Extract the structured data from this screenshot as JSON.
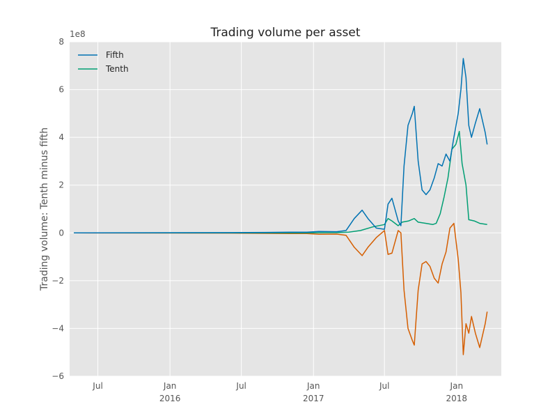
{
  "chart_data": {
    "type": "line",
    "title": "Trading volume per asset",
    "xlabel": "",
    "ylabel": "Trading volume: Tenth minus fifth",
    "y_offset_label": "1e8",
    "y_scale": 100000000,
    "ylim": [
      -6,
      8
    ],
    "yticks": [
      -6,
      -4,
      -2,
      0,
      2,
      4,
      6,
      8
    ],
    "xlim": [
      "2015-04-20",
      "2018-04-25"
    ],
    "xticks": [
      {
        "date": "2015-07-01",
        "label": "Jul",
        "year": ""
      },
      {
        "date": "2016-01-01",
        "label": "Jan",
        "year": "2016"
      },
      {
        "date": "2016-07-01",
        "label": "Jul",
        "year": ""
      },
      {
        "date": "2017-01-01",
        "label": "Jan",
        "year": "2017"
      },
      {
        "date": "2017-07-01",
        "label": "Jul",
        "year": ""
      },
      {
        "date": "2018-01-01",
        "label": "Jan",
        "year": "2018"
      }
    ],
    "grid": true,
    "legend_position": "top-left",
    "colors": {
      "background": "#e5e5e5",
      "grid": "#ffffff",
      "fifth": "#0072b2",
      "tenth": "#009e73",
      "difference": "#d55e00"
    },
    "series": [
      {
        "name": "Fifth",
        "key": "fifth",
        "points": [
          [
            "2015-05-01",
            0
          ],
          [
            "2016-06-01",
            0.01
          ],
          [
            "2016-09-01",
            0.02
          ],
          [
            "2016-11-01",
            0.03
          ],
          [
            "2016-12-15",
            0.03
          ],
          [
            "2017-01-15",
            0.06
          ],
          [
            "2017-03-01",
            0.05
          ],
          [
            "2017-03-25",
            0.1
          ],
          [
            "2017-04-15",
            0.6
          ],
          [
            "2017-05-05",
            0.95
          ],
          [
            "2017-05-20",
            0.6
          ],
          [
            "2017-06-10",
            0.2
          ],
          [
            "2017-07-01",
            0.15
          ],
          [
            "2017-07-10",
            1.2
          ],
          [
            "2017-07-20",
            1.45
          ],
          [
            "2017-08-05",
            0.5
          ],
          [
            "2017-08-12",
            0.3
          ],
          [
            "2017-08-20",
            2.8
          ],
          [
            "2017-08-30",
            4.5
          ],
          [
            "2017-09-10",
            5.0
          ],
          [
            "2017-09-15",
            5.3
          ],
          [
            "2017-09-25",
            3.0
          ],
          [
            "2017-10-05",
            1.8
          ],
          [
            "2017-10-15",
            1.6
          ],
          [
            "2017-10-25",
            1.8
          ],
          [
            "2017-11-05",
            2.3
          ],
          [
            "2017-11-15",
            2.9
          ],
          [
            "2017-11-25",
            2.8
          ],
          [
            "2017-12-05",
            3.3
          ],
          [
            "2017-12-15",
            3.0
          ],
          [
            "2017-12-25",
            4.0
          ],
          [
            "2018-01-05",
            5.0
          ],
          [
            "2018-01-12",
            6.0
          ],
          [
            "2018-01-18",
            7.3
          ],
          [
            "2018-01-25",
            6.5
          ],
          [
            "2018-02-01",
            4.5
          ],
          [
            "2018-02-08",
            4.0
          ],
          [
            "2018-02-18",
            4.6
          ],
          [
            "2018-03-01",
            5.2
          ],
          [
            "2018-03-15",
            4.2
          ],
          [
            "2018-03-20",
            3.7
          ]
        ]
      },
      {
        "name": "Tenth",
        "key": "tenth",
        "points": [
          [
            "2015-05-01",
            0
          ],
          [
            "2016-12-01",
            0.0
          ],
          [
            "2017-03-01",
            0.01
          ],
          [
            "2017-04-01",
            0.03
          ],
          [
            "2017-05-01",
            0.1
          ],
          [
            "2017-06-01",
            0.25
          ],
          [
            "2017-07-01",
            0.35
          ],
          [
            "2017-07-10",
            0.6
          ],
          [
            "2017-07-20",
            0.5
          ],
          [
            "2017-08-05",
            0.3
          ],
          [
            "2017-08-15",
            0.45
          ],
          [
            "2017-09-01",
            0.5
          ],
          [
            "2017-09-15",
            0.6
          ],
          [
            "2017-09-25",
            0.45
          ],
          [
            "2017-10-15",
            0.4
          ],
          [
            "2017-11-01",
            0.35
          ],
          [
            "2017-11-10",
            0.4
          ],
          [
            "2017-11-20",
            0.8
          ],
          [
            "2017-11-30",
            1.5
          ],
          [
            "2017-12-10",
            2.3
          ],
          [
            "2017-12-20",
            3.5
          ],
          [
            "2017-12-30",
            3.7
          ],
          [
            "2018-01-08",
            4.25
          ],
          [
            "2018-01-15",
            2.9
          ],
          [
            "2018-01-25",
            2.0
          ],
          [
            "2018-02-01",
            0.55
          ],
          [
            "2018-02-15",
            0.5
          ],
          [
            "2018-03-01",
            0.4
          ],
          [
            "2018-03-20",
            0.35
          ]
        ]
      },
      {
        "key": "difference",
        "points": [
          [
            "2015-05-01",
            0
          ],
          [
            "2016-06-01",
            -0.01
          ],
          [
            "2016-09-01",
            -0.02
          ],
          [
            "2016-11-01",
            -0.03
          ],
          [
            "2016-12-15",
            -0.03
          ],
          [
            "2017-01-15",
            -0.06
          ],
          [
            "2017-03-01",
            -0.05
          ],
          [
            "2017-03-25",
            -0.1
          ],
          [
            "2017-04-15",
            -0.6
          ],
          [
            "2017-05-05",
            -0.95
          ],
          [
            "2017-05-20",
            -0.6
          ],
          [
            "2017-06-10",
            -0.2
          ],
          [
            "2017-07-01",
            0.1
          ],
          [
            "2017-07-10",
            -0.9
          ],
          [
            "2017-07-20",
            -0.85
          ],
          [
            "2017-08-05",
            0.1
          ],
          [
            "2017-08-12",
            0.0
          ],
          [
            "2017-08-20",
            -2.4
          ],
          [
            "2017-08-30",
            -4.0
          ],
          [
            "2017-09-10",
            -4.5
          ],
          [
            "2017-09-15",
            -4.7
          ],
          [
            "2017-09-25",
            -2.4
          ],
          [
            "2017-10-05",
            -1.3
          ],
          [
            "2017-10-15",
            -1.2
          ],
          [
            "2017-10-25",
            -1.4
          ],
          [
            "2017-11-05",
            -1.9
          ],
          [
            "2017-11-15",
            -2.1
          ],
          [
            "2017-11-25",
            -1.3
          ],
          [
            "2017-12-05",
            -0.8
          ],
          [
            "2017-12-15",
            0.2
          ],
          [
            "2017-12-25",
            0.4
          ],
          [
            "2018-01-05",
            -1.1
          ],
          [
            "2018-01-12",
            -2.5
          ],
          [
            "2018-01-18",
            -5.1
          ],
          [
            "2018-01-25",
            -3.8
          ],
          [
            "2018-02-01",
            -4.2
          ],
          [
            "2018-02-08",
            -3.5
          ],
          [
            "2018-02-18",
            -4.2
          ],
          [
            "2018-03-01",
            -4.8
          ],
          [
            "2018-03-15",
            -3.8
          ],
          [
            "2018-03-20",
            -3.3
          ]
        ]
      }
    ]
  }
}
